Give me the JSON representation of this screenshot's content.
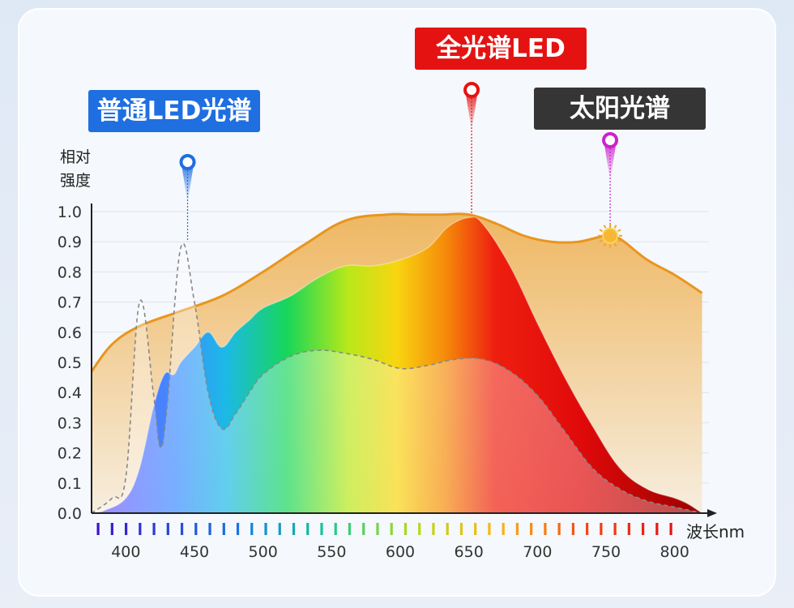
{
  "chart_data": {
    "type": "area",
    "ylabel": "相对强度",
    "xlabel": "波长nm",
    "ylim": [
      0,
      1.0
    ],
    "xlim": [
      375,
      825
    ],
    "y_ticks": [
      "0.0",
      "0.1",
      "0.2",
      "0.3",
      "0.4",
      "0.5",
      "0.6",
      "0.7",
      "0.8",
      "0.9",
      "1.0"
    ],
    "x_ticks": [
      "400",
      "450",
      "500",
      "550",
      "600",
      "650",
      "700",
      "750",
      "800"
    ],
    "grid": true,
    "series": [
      {
        "name": "太阳光谱",
        "color": "#e8951e",
        "x": [
          375,
          390,
          410,
          440,
          470,
          500,
          530,
          560,
          590,
          610,
          630,
          650,
          670,
          690,
          710,
          730,
          750,
          760,
          780,
          800,
          820
        ],
        "y": [
          0.47,
          0.56,
          0.62,
          0.67,
          0.72,
          0.8,
          0.89,
          0.97,
          0.99,
          0.99,
          0.99,
          0.99,
          0.96,
          0.92,
          0.9,
          0.9,
          0.92,
          0.91,
          0.84,
          0.79,
          0.73
        ]
      },
      {
        "name": "全光谱LED",
        "color": "#e51212",
        "x": [
          375,
          385,
          400,
          410,
          420,
          428,
          435,
          440,
          450,
          460,
          470,
          480,
          490,
          500,
          520,
          540,
          560,
          580,
          600,
          620,
          635,
          650,
          660,
          680,
          700,
          720,
          740,
          760,
          780,
          800,
          810,
          820
        ],
        "y": [
          0.0,
          0.01,
          0.05,
          0.15,
          0.35,
          0.46,
          0.46,
          0.5,
          0.55,
          0.6,
          0.55,
          0.6,
          0.64,
          0.68,
          0.72,
          0.78,
          0.82,
          0.82,
          0.84,
          0.88,
          0.95,
          0.98,
          0.96,
          0.82,
          0.63,
          0.45,
          0.29,
          0.15,
          0.08,
          0.05,
          0.03,
          0.0
        ]
      },
      {
        "name": "普通LED光谱",
        "color": "#888888",
        "x": [
          375,
          390,
          400,
          410,
          420,
          425,
          430,
          440,
          450,
          460,
          470,
          480,
          490,
          500,
          520,
          540,
          560,
          580,
          600,
          620,
          640,
          660,
          680,
          700,
          720,
          740,
          760,
          780,
          800,
          820
        ],
        "y": [
          0.0,
          0.05,
          0.12,
          0.7,
          0.4,
          0.22,
          0.35,
          0.88,
          0.7,
          0.4,
          0.28,
          0.33,
          0.4,
          0.46,
          0.52,
          0.54,
          0.53,
          0.51,
          0.48,
          0.49,
          0.51,
          0.51,
          0.47,
          0.39,
          0.27,
          0.15,
          0.08,
          0.04,
          0.02,
          0.0
        ]
      }
    ],
    "callouts": [
      {
        "label": "普通LED光谱",
        "color": "#1f6fe0",
        "x": 445,
        "y": 0.9
      },
      {
        "label": "全光谱LED",
        "color": "#e51212",
        "x": 652,
        "y": 0.99
      },
      {
        "label": "太阳光谱",
        "color": "#cc22cc",
        "x": 753,
        "y": 0.92
      }
    ]
  }
}
